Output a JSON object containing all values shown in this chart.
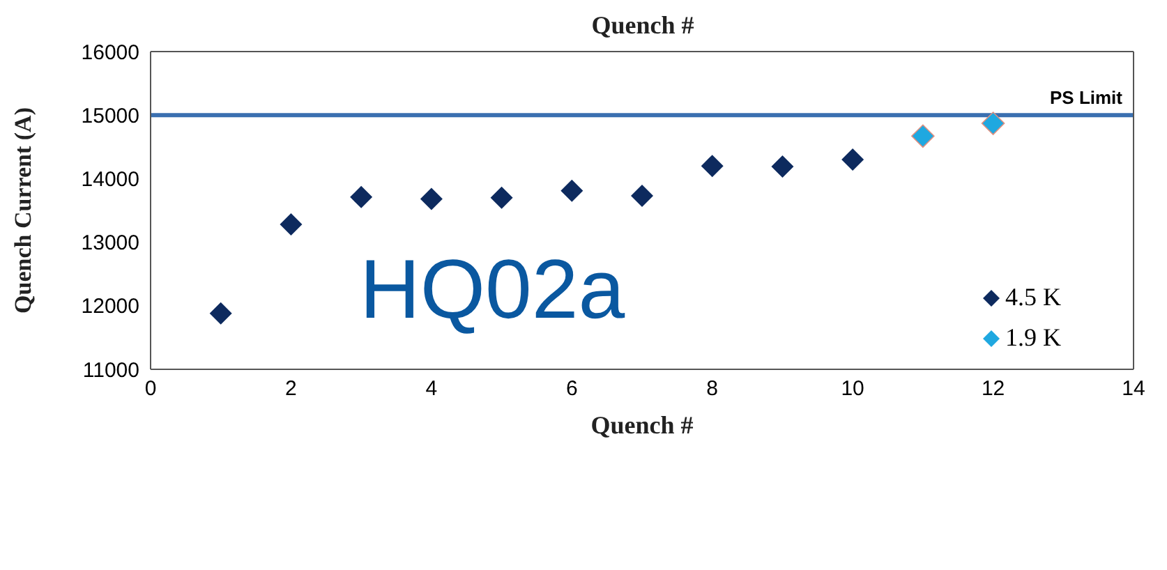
{
  "chart_data": {
    "type": "scatter",
    "title": "Quench #",
    "xlabel": "Quench #",
    "ylabel": "Quench Current (A)",
    "annotations": [
      "HQ02a"
    ],
    "series": [
      {
        "name": "4.5 K",
        "color": "#0d2a5e",
        "x": [
          1,
          2,
          3,
          4,
          5,
          6,
          7,
          8,
          9,
          10
        ],
        "values": [
          11880,
          13280,
          13710,
          13680,
          13700,
          13810,
          13730,
          14200,
          14190,
          14300
        ]
      },
      {
        "name": "1.9 K",
        "color": "#1fa8e0",
        "x": [
          11,
          12
        ],
        "values": [
          14670,
          14870
        ]
      }
    ],
    "xlim": [
      0,
      14
    ],
    "xticks": [
      0,
      2,
      4,
      6,
      8,
      10,
      12,
      14
    ],
    "ylim": [
      11000,
      16000
    ],
    "yticks": [
      11000,
      12000,
      13000,
      14000,
      15000,
      16000
    ],
    "ref_lines": [
      {
        "axis": "y",
        "value": 15000,
        "label": "PS Limit",
        "color": "#3a6fb0"
      }
    ],
    "marker": "diamond",
    "legend": "bottom right"
  }
}
